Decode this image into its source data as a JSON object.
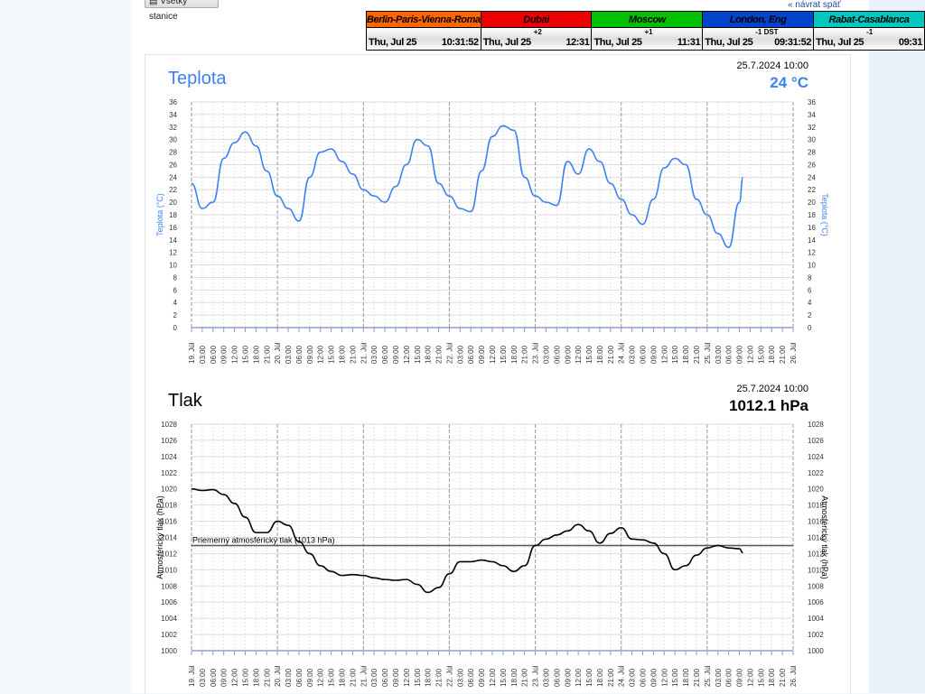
{
  "header": {
    "all_stations_label": "Všetky stanice",
    "back_link": "« návrat späť"
  },
  "clocks": [
    {
      "city": "Berlin-Paris-Vienna-Roma",
      "color": "#ff6600",
      "date": "Thu, Jul 25",
      "offset": "",
      "time": "10:31:52"
    },
    {
      "city": "Dubai",
      "color": "#ee0000",
      "date": "Thu, Jul 25",
      "offset": "+2",
      "time": "12:31"
    },
    {
      "city": "Moscow",
      "color": "#00c000",
      "date": "Thu, Jul 25",
      "offset": "+1",
      "time": "11:31"
    },
    {
      "city": "London, Eng",
      "color": "#0044cc",
      "date": "Thu, Jul 25",
      "offset": "-1 DST",
      "time": "09:31:52"
    },
    {
      "city": "Rabat-Casablanca",
      "color": "#00c8c0",
      "date": "Thu, Jul 25",
      "offset": "-1",
      "time": "09:31"
    }
  ],
  "temp": {
    "title": "Teplota",
    "date": "25.7.2024 10:00",
    "value": "24 °C"
  },
  "pressure": {
    "title": "Tlak",
    "date": "25.7.2024 10:00",
    "value": "1012.1 hPa"
  },
  "chart_data": [
    {
      "type": "line",
      "ylabel": "Teplota (°C)",
      "ylim": [
        0,
        36
      ],
      "yticks": [
        0,
        2,
        4,
        6,
        8,
        10,
        12,
        14,
        16,
        18,
        20,
        22,
        24,
        26,
        28,
        30,
        32,
        34,
        36
      ],
      "grid": true,
      "color": "#3b82f0",
      "xticks": [
        "19. Júl",
        "03:00",
        "06:00",
        "09:00",
        "12:00",
        "15:00",
        "18:00",
        "21:00",
        "20. Júl",
        "03:00",
        "06:00",
        "09:00",
        "12:00",
        "15:00",
        "18:00",
        "21:00",
        "21. Júl",
        "03:00",
        "06:00",
        "09:00",
        "12:00",
        "15:00",
        "18:00",
        "21:00",
        "22. Júl",
        "03:00",
        "06:00",
        "09:00",
        "12:00",
        "15:00",
        "18:00",
        "21:00",
        "23. Júl",
        "03:00",
        "06:00",
        "09:00",
        "12:00",
        "15:00",
        "18:00",
        "21:00",
        "24. Júl",
        "03:00",
        "06:00",
        "09:00",
        "12:00",
        "15:00",
        "18:00",
        "21:00",
        "25. Júl",
        "03:00",
        "06:00",
        "09:00",
        "12:00",
        "15:00",
        "18:00",
        "21:00",
        "26. Júl"
      ],
      "x": [
        "2024-07-19T00:00",
        "03:00",
        "06:00",
        "09:00",
        "12:00",
        "15:00",
        "18:00",
        "21:00",
        "2024-07-20T00:00",
        "03:00",
        "06:00",
        "09:00",
        "12:00",
        "15:00",
        "18:00",
        "21:00",
        "2024-07-21T00:00",
        "03:00",
        "06:00",
        "09:00",
        "12:00",
        "15:00",
        "18:00",
        "21:00",
        "2024-07-22T00:00",
        "03:00",
        "06:00",
        "09:00",
        "12:00",
        "15:00",
        "18:00",
        "21:00",
        "2024-07-23T00:00",
        "03:00",
        "06:00",
        "09:00",
        "12:00",
        "15:00",
        "18:00",
        "21:00",
        "2024-07-24T00:00",
        "03:00",
        "06:00",
        "09:00",
        "12:00",
        "15:00",
        "18:00",
        "21:00",
        "2024-07-25T00:00",
        "03:00",
        "06:00",
        "09:00",
        "10:00"
      ],
      "values": [
        23,
        19,
        20,
        27,
        29.5,
        31.2,
        29,
        25,
        21,
        19,
        17,
        24,
        28,
        28.5,
        26.5,
        24.5,
        22,
        21,
        20,
        22.5,
        26,
        30,
        29,
        23,
        21,
        19,
        18.5,
        25,
        30.5,
        32.2,
        31.5,
        24,
        21,
        20,
        19.5,
        26.5,
        24.5,
        28.5,
        26.5,
        23,
        20.5,
        18,
        16.5,
        20.5,
        25.5,
        27,
        26,
        20.5,
        18,
        15,
        12.8,
        20,
        24
      ]
    },
    {
      "type": "line",
      "ylabel": "Atmosférický tlak (hPa)",
      "ylim": [
        1000,
        1028
      ],
      "yticks": [
        1000,
        1002,
        1004,
        1006,
        1008,
        1010,
        1012,
        1014,
        1016,
        1018,
        1020,
        1022,
        1024,
        1026,
        1028
      ],
      "grid": true,
      "color": "#000000",
      "reference_line": {
        "value": 1013,
        "label": "Priemerný atmosférický tlak (1013 hPa)"
      },
      "values": [
        1020,
        1019.8,
        1019.9,
        1019.3,
        1018.2,
        1016.5,
        1014.6,
        1014.6,
        1016,
        1015.5,
        1013.5,
        1012,
        1010.5,
        1009.8,
        1009.3,
        1009.4,
        1009.3,
        1009,
        1008.8,
        1008.7,
        1008.8,
        1008.2,
        1007.2,
        1007.8,
        1009.5,
        1011,
        1011,
        1011.2,
        1011,
        1010.5,
        1009.8,
        1010.5,
        1013,
        1013.8,
        1014.3,
        1014.8,
        1015.6,
        1014.8,
        1013.3,
        1014.5,
        1015.2,
        1013.8,
        1013.7,
        1013.3,
        1012,
        1010,
        1010.5,
        1011.8,
        1012.7,
        1013,
        1012.7,
        1012.6,
        1012.1
      ]
    }
  ]
}
